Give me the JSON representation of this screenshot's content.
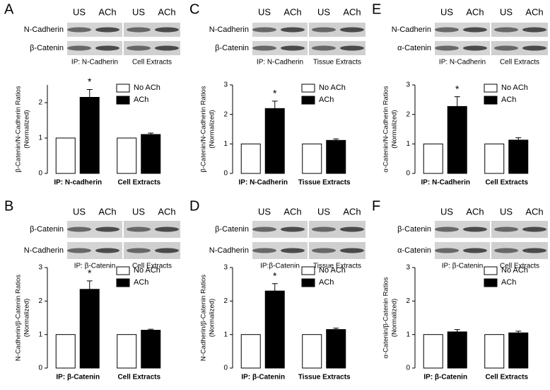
{
  "chart_data": [
    {
      "type": "bar",
      "panel_label": "A",
      "blot": {
        "columns": [
          "US",
          "ACh",
          "US",
          "ACh"
        ],
        "rows": [
          "N-Cadherin",
          "β-Catenin"
        ],
        "groups": [
          "IP: N-Cadherin",
          "Cell Extracts"
        ]
      },
      "ylabel": [
        "β-Catenin/N-Cadherin Ratios",
        "(Normalized)"
      ],
      "categories": [
        "IP: N-cadherin",
        "Cell Extracts"
      ],
      "series": [
        {
          "name": "No ACh",
          "color": "#ffffff",
          "values": [
            1,
            1
          ],
          "errors": [
            0,
            0
          ]
        },
        {
          "name": "ACh",
          "color": "#000000",
          "values": [
            2.15,
            1.1
          ],
          "errors": [
            0.22,
            0.04
          ]
        }
      ],
      "annotation": "*",
      "ylim": [
        0,
        2.5
      ],
      "yticks": [
        0,
        1,
        2
      ]
    },
    {
      "type": "bar",
      "panel_label": "C",
      "blot": {
        "columns": [
          "US",
          "ACh",
          "US",
          "ACh"
        ],
        "rows": [
          "N-Cadherin",
          "β-Catenin"
        ],
        "groups": [
          "IP: N-Cadherin",
          "Tissue Extracts"
        ]
      },
      "ylabel": [
        "β-Catenin/N-Cadherin Ratios",
        "(Normalized)"
      ],
      "categories": [
        "IP: N-Cadherin",
        "Tissue Extracts"
      ],
      "series": [
        {
          "name": "No ACh",
          "color": "#ffffff",
          "values": [
            1,
            1
          ],
          "errors": [
            0,
            0
          ]
        },
        {
          "name": "ACh",
          "color": "#000000",
          "values": [
            2.2,
            1.12
          ],
          "errors": [
            0.25,
            0.05
          ]
        }
      ],
      "annotation": "*",
      "ylim": [
        0,
        3
      ],
      "yticks": [
        0,
        1,
        2,
        3
      ]
    },
    {
      "type": "bar",
      "panel_label": "E",
      "blot": {
        "columns": [
          "US",
          "ACh",
          "US",
          "ACh"
        ],
        "rows": [
          "N-Cadherin",
          "α-Catenin"
        ],
        "groups": [
          "IP: N-Cadherin",
          "Cell Extracts"
        ]
      },
      "ylabel": [
        "α-Catenin/N-Cadherin Ratios",
        "(Normalized)"
      ],
      "categories": [
        "IP: N-Cadherin",
        "Cell Extracts"
      ],
      "series": [
        {
          "name": "No ACh",
          "color": "#ffffff",
          "values": [
            1,
            1
          ],
          "errors": [
            0,
            0
          ]
        },
        {
          "name": "ACh",
          "color": "#000000",
          "values": [
            2.27,
            1.13
          ],
          "errors": [
            0.33,
            0.08
          ]
        }
      ],
      "annotation": "*",
      "ylim": [
        0,
        3
      ],
      "yticks": [
        0,
        1,
        2,
        3
      ]
    },
    {
      "type": "bar",
      "panel_label": "B",
      "blot": {
        "columns": [
          "US",
          "ACh",
          "US",
          "ACh"
        ],
        "rows": [
          "β-Catenin",
          "N-Cadherin"
        ],
        "groups": [
          "IP: β-Catenin",
          "Cell Extracts"
        ]
      },
      "ylabel": [
        "N-Cadherin/β-Catenin Ratios",
        "(Normalized)"
      ],
      "categories": [
        "IP: β-Catenin",
        "Cell Extracts"
      ],
      "series": [
        {
          "name": "No ACh",
          "color": "#ffffff",
          "values": [
            1,
            1
          ],
          "errors": [
            0,
            0
          ]
        },
        {
          "name": "ACh",
          "color": "#000000",
          "values": [
            2.35,
            1.13
          ],
          "errors": [
            0.25,
            0.03
          ]
        }
      ],
      "annotation": "*",
      "ylim": [
        0,
        3
      ],
      "yticks": [
        0,
        1,
        2,
        3
      ]
    },
    {
      "type": "bar",
      "panel_label": "D",
      "blot": {
        "columns": [
          "US",
          "ACh",
          "US",
          "ACh"
        ],
        "rows": [
          "β-Catenin",
          "N-Cadherin"
        ],
        "groups": [
          "IP:β-Catenin",
          "Tissue Extracts"
        ]
      },
      "ylabel": [
        "N-Cadherin/β-Catenin Ratios",
        "(Normalized)"
      ],
      "categories": [
        "IP: β-Catenin",
        "Tissue Extracts"
      ],
      "series": [
        {
          "name": "No ACh",
          "color": "#ffffff",
          "values": [
            1,
            1
          ],
          "errors": [
            0,
            0
          ]
        },
        {
          "name": "ACh",
          "color": "#000000",
          "values": [
            2.3,
            1.15
          ],
          "errors": [
            0.22,
            0.04
          ]
        }
      ],
      "annotation": "*",
      "ylim": [
        0,
        3
      ],
      "yticks": [
        0,
        1,
        2,
        3
      ]
    },
    {
      "type": "bar",
      "panel_label": "F",
      "blot": {
        "columns": [
          "US",
          "ACh",
          "US",
          "ACh"
        ],
        "rows": [
          "β-Catenin",
          "α-Catenin"
        ],
        "groups": [
          "IP: β-Catenin",
          "Cell Extracts"
        ]
      },
      "ylabel": [
        "α-Catenin/β-Catenin Ratios",
        "(Normalized)"
      ],
      "categories": [
        "IP: β-Catenin",
        "Cell Extracts"
      ],
      "series": [
        {
          "name": "No ACh",
          "color": "#ffffff",
          "values": [
            1,
            1
          ],
          "errors": [
            0,
            0
          ]
        },
        {
          "name": "ACh",
          "color": "#000000",
          "values": [
            1.08,
            1.05
          ],
          "errors": [
            0.07,
            0.05
          ]
        }
      ],
      "ylim": [
        0,
        3
      ],
      "yticks": [
        0,
        1,
        2,
        3
      ]
    }
  ]
}
